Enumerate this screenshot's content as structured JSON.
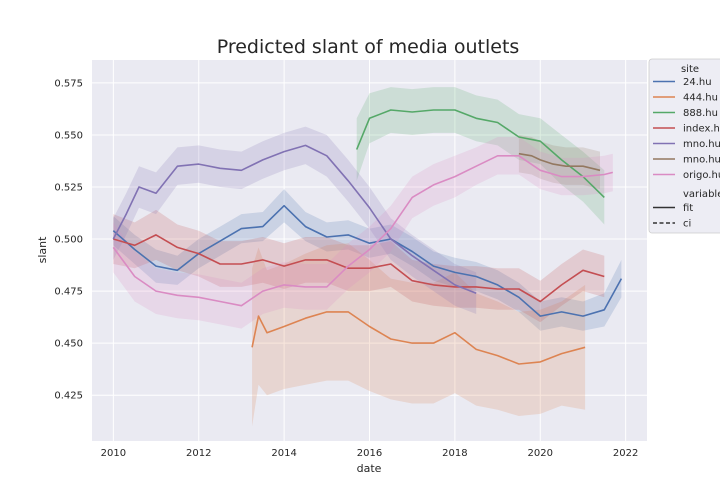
{
  "chart_data": {
    "type": "line",
    "title": "Predicted slant of media outlets",
    "xlabel": "date",
    "ylabel": "slant",
    "xlim": [
      2009.5,
      2022.5
    ],
    "ylim": [
      0.403,
      0.586
    ],
    "xticks": [
      2010,
      2012,
      2014,
      2016,
      2018,
      2020,
      2022
    ],
    "yticks": [
      0.425,
      0.45,
      0.475,
      0.5,
      0.525,
      0.55,
      0.575
    ],
    "ytick_labels": [
      "0.425",
      "0.450",
      "0.475",
      "0.500",
      "0.525",
      "0.550",
      "0.575"
    ],
    "grid": true,
    "legend": {
      "placement": "right",
      "site_title": "site",
      "variable_title": "variable",
      "variable_entries": [
        {
          "label": "fit",
          "style": "solid"
        },
        {
          "label": "ci",
          "style": "dashed"
        }
      ]
    },
    "series": [
      {
        "name": "24.hu",
        "color": "#4c72b0",
        "x": [
          2010,
          2010.5,
          2011,
          2011.5,
          2012,
          2012.5,
          2013,
          2013.5,
          2014,
          2014.5,
          2015,
          2015.5,
          2016,
          2016.5,
          2017,
          2017.5,
          2018,
          2018.5,
          2019,
          2019.5,
          2020,
          2020.5,
          2021,
          2021.5,
          2021.9
        ],
        "y": [
          0.504,
          0.495,
          0.487,
          0.485,
          0.493,
          0.499,
          0.505,
          0.506,
          0.516,
          0.506,
          0.501,
          0.502,
          0.498,
          0.5,
          0.494,
          0.487,
          0.484,
          0.482,
          0.478,
          0.472,
          0.463,
          0.465,
          0.463,
          0.466,
          0.481
        ],
        "ci_lower": [
          0.497,
          0.488,
          0.479,
          0.478,
          0.486,
          0.492,
          0.498,
          0.499,
          0.508,
          0.499,
          0.494,
          0.495,
          0.491,
          0.493,
          0.487,
          0.48,
          0.477,
          0.475,
          0.471,
          0.465,
          0.456,
          0.458,
          0.456,
          0.458,
          0.472
        ],
        "ci_upper": [
          0.511,
          0.502,
          0.495,
          0.492,
          0.5,
          0.506,
          0.512,
          0.513,
          0.524,
          0.513,
          0.508,
          0.509,
          0.505,
          0.507,
          0.501,
          0.494,
          0.491,
          0.489,
          0.485,
          0.479,
          0.47,
          0.472,
          0.47,
          0.474,
          0.49
        ]
      },
      {
        "name": "444.hu",
        "color": "#dd8452",
        "x": [
          2013.25,
          2013.4,
          2013.6,
          2014,
          2014.5,
          2015,
          2015.5,
          2016,
          2016.5,
          2017,
          2017.5,
          2018,
          2018.5,
          2019,
          2019.5,
          2020,
          2020.5,
          2021.05
        ],
        "y": [
          0.448,
          0.463,
          0.455,
          0.458,
          0.462,
          0.465,
          0.465,
          0.458,
          0.452,
          0.45,
          0.45,
          0.455,
          0.447,
          0.444,
          0.44,
          0.441,
          0.445,
          0.448
        ],
        "ci_lower": [
          0.41,
          0.43,
          0.425,
          0.428,
          0.43,
          0.432,
          0.432,
          0.427,
          0.423,
          0.421,
          0.421,
          0.426,
          0.42,
          0.418,
          0.415,
          0.416,
          0.42,
          0.418
        ],
        "ci_upper": [
          0.486,
          0.496,
          0.485,
          0.488,
          0.493,
          0.497,
          0.498,
          0.49,
          0.481,
          0.479,
          0.479,
          0.484,
          0.474,
          0.47,
          0.465,
          0.466,
          0.47,
          0.478
        ]
      },
      {
        "name": "888.hu",
        "color": "#55a868",
        "x": [
          2015.7,
          2016,
          2016.5,
          2017,
          2017.5,
          2018,
          2018.5,
          2019,
          2019.5,
          2020,
          2020.5,
          2021,
          2021.5
        ],
        "y": [
          0.543,
          0.558,
          0.562,
          0.561,
          0.562,
          0.562,
          0.558,
          0.556,
          0.549,
          0.547,
          0.538,
          0.53,
          0.52
        ],
        "ci_lower": [
          0.528,
          0.546,
          0.551,
          0.55,
          0.551,
          0.551,
          0.547,
          0.545,
          0.538,
          0.536,
          0.526,
          0.518,
          0.507
        ],
        "ci_upper": [
          0.558,
          0.57,
          0.573,
          0.572,
          0.573,
          0.573,
          0.569,
          0.567,
          0.56,
          0.558,
          0.55,
          0.542,
          0.533
        ]
      },
      {
        "name": "index.hu",
        "color": "#c44e52",
        "x": [
          2010,
          2010.5,
          2011,
          2011.5,
          2012,
          2012.5,
          2013,
          2013.5,
          2014,
          2014.5,
          2015,
          2015.5,
          2016,
          2016.5,
          2017,
          2017.5,
          2018,
          2018.5,
          2019,
          2019.5,
          2020,
          2020.5,
          2021,
          2021.5
        ],
        "y": [
          0.5,
          0.497,
          0.502,
          0.496,
          0.493,
          0.488,
          0.488,
          0.49,
          0.487,
          0.49,
          0.49,
          0.486,
          0.486,
          0.488,
          0.48,
          0.478,
          0.477,
          0.477,
          0.476,
          0.476,
          0.47,
          0.478,
          0.485,
          0.482
        ],
        "ci_lower": [
          0.488,
          0.486,
          0.49,
          0.485,
          0.482,
          0.477,
          0.477,
          0.479,
          0.476,
          0.479,
          0.479,
          0.475,
          0.475,
          0.477,
          0.47,
          0.468,
          0.467,
          0.467,
          0.466,
          0.466,
          0.46,
          0.468,
          0.475,
          0.472
        ],
        "ci_upper": [
          0.512,
          0.508,
          0.514,
          0.507,
          0.504,
          0.499,
          0.499,
          0.501,
          0.498,
          0.501,
          0.501,
          0.497,
          0.497,
          0.499,
          0.49,
          0.488,
          0.487,
          0.487,
          0.486,
          0.486,
          0.48,
          0.488,
          0.495,
          0.492
        ]
      },
      {
        "name": "mno.hu",
        "color": "#8172b3",
        "x": [
          2010,
          2010.3,
          2010.6,
          2011,
          2011.5,
          2012,
          2012.5,
          2013,
          2013.5,
          2014,
          2014.5,
          2015,
          2015.5,
          2016,
          2016.5,
          2017,
          2017.5,
          2018,
          2018.5
        ],
        "y": [
          0.5,
          0.512,
          0.525,
          0.522,
          0.535,
          0.536,
          0.534,
          0.533,
          0.538,
          0.542,
          0.545,
          0.54,
          0.528,
          0.515,
          0.5,
          0.492,
          0.485,
          0.478,
          0.474
        ],
        "ci_lower": [
          0.49,
          0.502,
          0.515,
          0.512,
          0.526,
          0.527,
          0.525,
          0.524,
          0.529,
          0.533,
          0.536,
          0.53,
          0.518,
          0.505,
          0.49,
          0.482,
          0.475,
          0.468,
          0.464
        ],
        "ci_upper": [
          0.51,
          0.522,
          0.535,
          0.532,
          0.544,
          0.545,
          0.543,
          0.542,
          0.547,
          0.551,
          0.554,
          0.55,
          0.538,
          0.525,
          0.51,
          0.502,
          0.495,
          0.488,
          0.484
        ]
      },
      {
        "name": "mno.hu",
        "color": "#937860",
        "x": [
          2019.5,
          2019.8,
          2020,
          2020.3,
          2020.6,
          2021,
          2021.4
        ],
        "y": [
          0.541,
          0.54,
          0.538,
          0.536,
          0.535,
          0.535,
          0.533
        ],
        "ci_lower": [
          0.532,
          0.531,
          0.529,
          0.527,
          0.526,
          0.526,
          0.524
        ],
        "ci_upper": [
          0.55,
          0.549,
          0.547,
          0.545,
          0.544,
          0.544,
          0.542
        ]
      },
      {
        "name": "origo.hu",
        "color": "#da8bc3",
        "x": [
          2010,
          2010.5,
          2011,
          2011.5,
          2012,
          2012.5,
          2013,
          2013.5,
          2014,
          2014.5,
          2015,
          2015.5,
          2016,
          2016.5,
          2017,
          2017.5,
          2018,
          2018.5,
          2019,
          2019.5,
          2020,
          2020.5,
          2021,
          2021.5,
          2021.7
        ],
        "y": [
          0.496,
          0.482,
          0.475,
          0.473,
          0.472,
          0.47,
          0.468,
          0.475,
          0.478,
          0.477,
          0.477,
          0.487,
          0.495,
          0.505,
          0.52,
          0.526,
          0.53,
          0.535,
          0.54,
          0.54,
          0.533,
          0.53,
          0.53,
          0.531,
          0.532
        ],
        "ci_lower": [
          0.484,
          0.47,
          0.464,
          0.462,
          0.461,
          0.459,
          0.457,
          0.464,
          0.467,
          0.466,
          0.466,
          0.476,
          0.484,
          0.494,
          0.51,
          0.516,
          0.52,
          0.526,
          0.531,
          0.531,
          0.524,
          0.521,
          0.521,
          0.522,
          0.523
        ],
        "ci_upper": [
          0.508,
          0.494,
          0.486,
          0.484,
          0.483,
          0.481,
          0.479,
          0.486,
          0.489,
          0.488,
          0.488,
          0.498,
          0.506,
          0.516,
          0.53,
          0.536,
          0.54,
          0.544,
          0.549,
          0.549,
          0.542,
          0.539,
          0.539,
          0.54,
          0.541
        ]
      }
    ]
  }
}
